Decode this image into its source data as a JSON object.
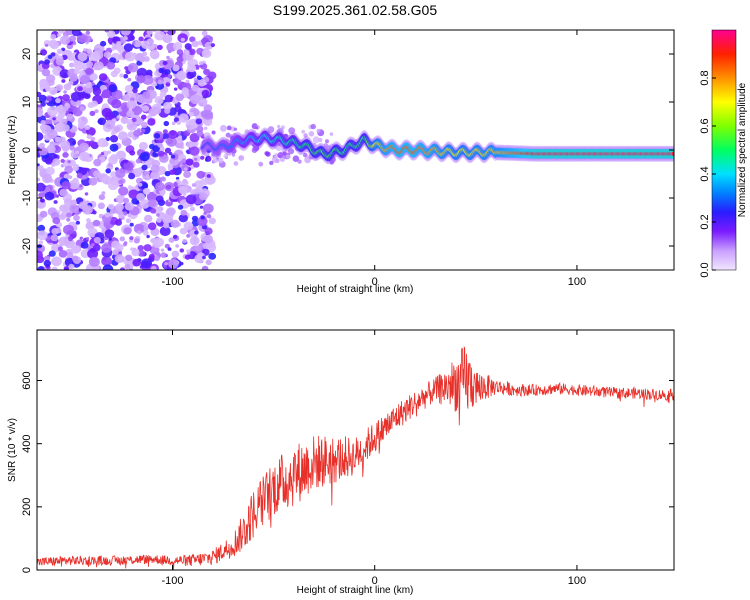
{
  "title": "S199.2025.361.02.58.G05",
  "chart_data": [
    {
      "type": "heatmap",
      "name": "spectrogram",
      "xlabel": "Height of straight line (km)",
      "ylabel": "Frequency (Hz)",
      "xlim": [
        -167,
        148
      ],
      "ylim": [
        -25,
        25
      ],
      "x_ticks": [
        -100,
        0,
        100
      ],
      "x_tick_labels": [
        "-100",
        "0",
        "100"
      ],
      "y_ticks": [
        -20,
        -10,
        0,
        10,
        20
      ],
      "y_tick_labels": [
        "-20",
        "-10",
        "0",
        "10",
        "20"
      ],
      "colorbar": {
        "label": "Normalized spectral amplitude",
        "range": [
          0,
          1
        ],
        "ticks": [
          0.0,
          0.2,
          0.4,
          0.6,
          0.8
        ],
        "tick_labels": [
          "0.0",
          "0.2",
          "0.4",
          "0.6",
          "0.8"
        ]
      },
      "ridge": {
        "x": [
          -85,
          -75,
          -65,
          -55,
          -45,
          -35,
          -25,
          -15,
          -5,
          0,
          10,
          20,
          40,
          60,
          80,
          100,
          120,
          148
        ],
        "freq": [
          1,
          0.5,
          2,
          2.5,
          2,
          1,
          -1,
          0,
          2,
          1,
          0,
          0,
          -0.5,
          -0.5,
          -0.8,
          -0.8,
          -0.8,
          -0.8
        ],
        "amplitude": [
          0.25,
          0.3,
          0.35,
          0.4,
          0.45,
          0.5,
          0.55,
          0.5,
          0.5,
          0.7,
          0.85,
          0.85,
          0.7,
          0.75,
          0.95,
          0.95,
          0.95,
          0.95
        ]
      },
      "noise_region": {
        "x_from": -167,
        "x_to": -80,
        "amplitude_range": [
          0.05,
          0.25
        ]
      }
    },
    {
      "type": "line",
      "name": "snr",
      "xlabel": "Height of straight line (km)",
      "ylabel": "SNR (10 * v/v)",
      "xlim": [
        -167,
        148
      ],
      "ylim": [
        0,
        760
      ],
      "x_ticks": [
        -100,
        0,
        100
      ],
      "x_tick_labels": [
        "-100",
        "0",
        "100"
      ],
      "y_ticks": [
        0,
        200,
        400,
        600
      ],
      "y_tick_labels": [
        "0",
        "200",
        "400",
        "600"
      ],
      "series": [
        {
          "name": "SNR",
          "color": "#e8302a",
          "x": [
            -167,
            -150,
            -130,
            -110,
            -100,
            -90,
            -80,
            -75,
            -70,
            -65,
            -60,
            -50,
            -40,
            -30,
            -20,
            -10,
            0,
            10,
            20,
            30,
            35,
            40,
            45,
            50,
            60,
            70,
            80,
            90,
            100,
            110,
            120,
            130,
            140,
            148
          ],
          "y": [
            25,
            30,
            30,
            35,
            30,
            30,
            40,
            60,
            80,
            120,
            180,
            260,
            300,
            340,
            350,
            360,
            420,
            480,
            530,
            570,
            580,
            590,
            600,
            580,
            580,
            570,
            570,
            575,
            570,
            565,
            560,
            560,
            555,
            555
          ],
          "noise_amplitude": [
            15,
            15,
            15,
            15,
            15,
            20,
            25,
            30,
            40,
            60,
            80,
            90,
            100,
            90,
            80,
            60,
            50,
            45,
            40,
            40,
            60,
            90,
            120,
            60,
            25,
            20,
            18,
            18,
            18,
            18,
            18,
            18,
            18,
            18
          ]
        }
      ]
    }
  ]
}
